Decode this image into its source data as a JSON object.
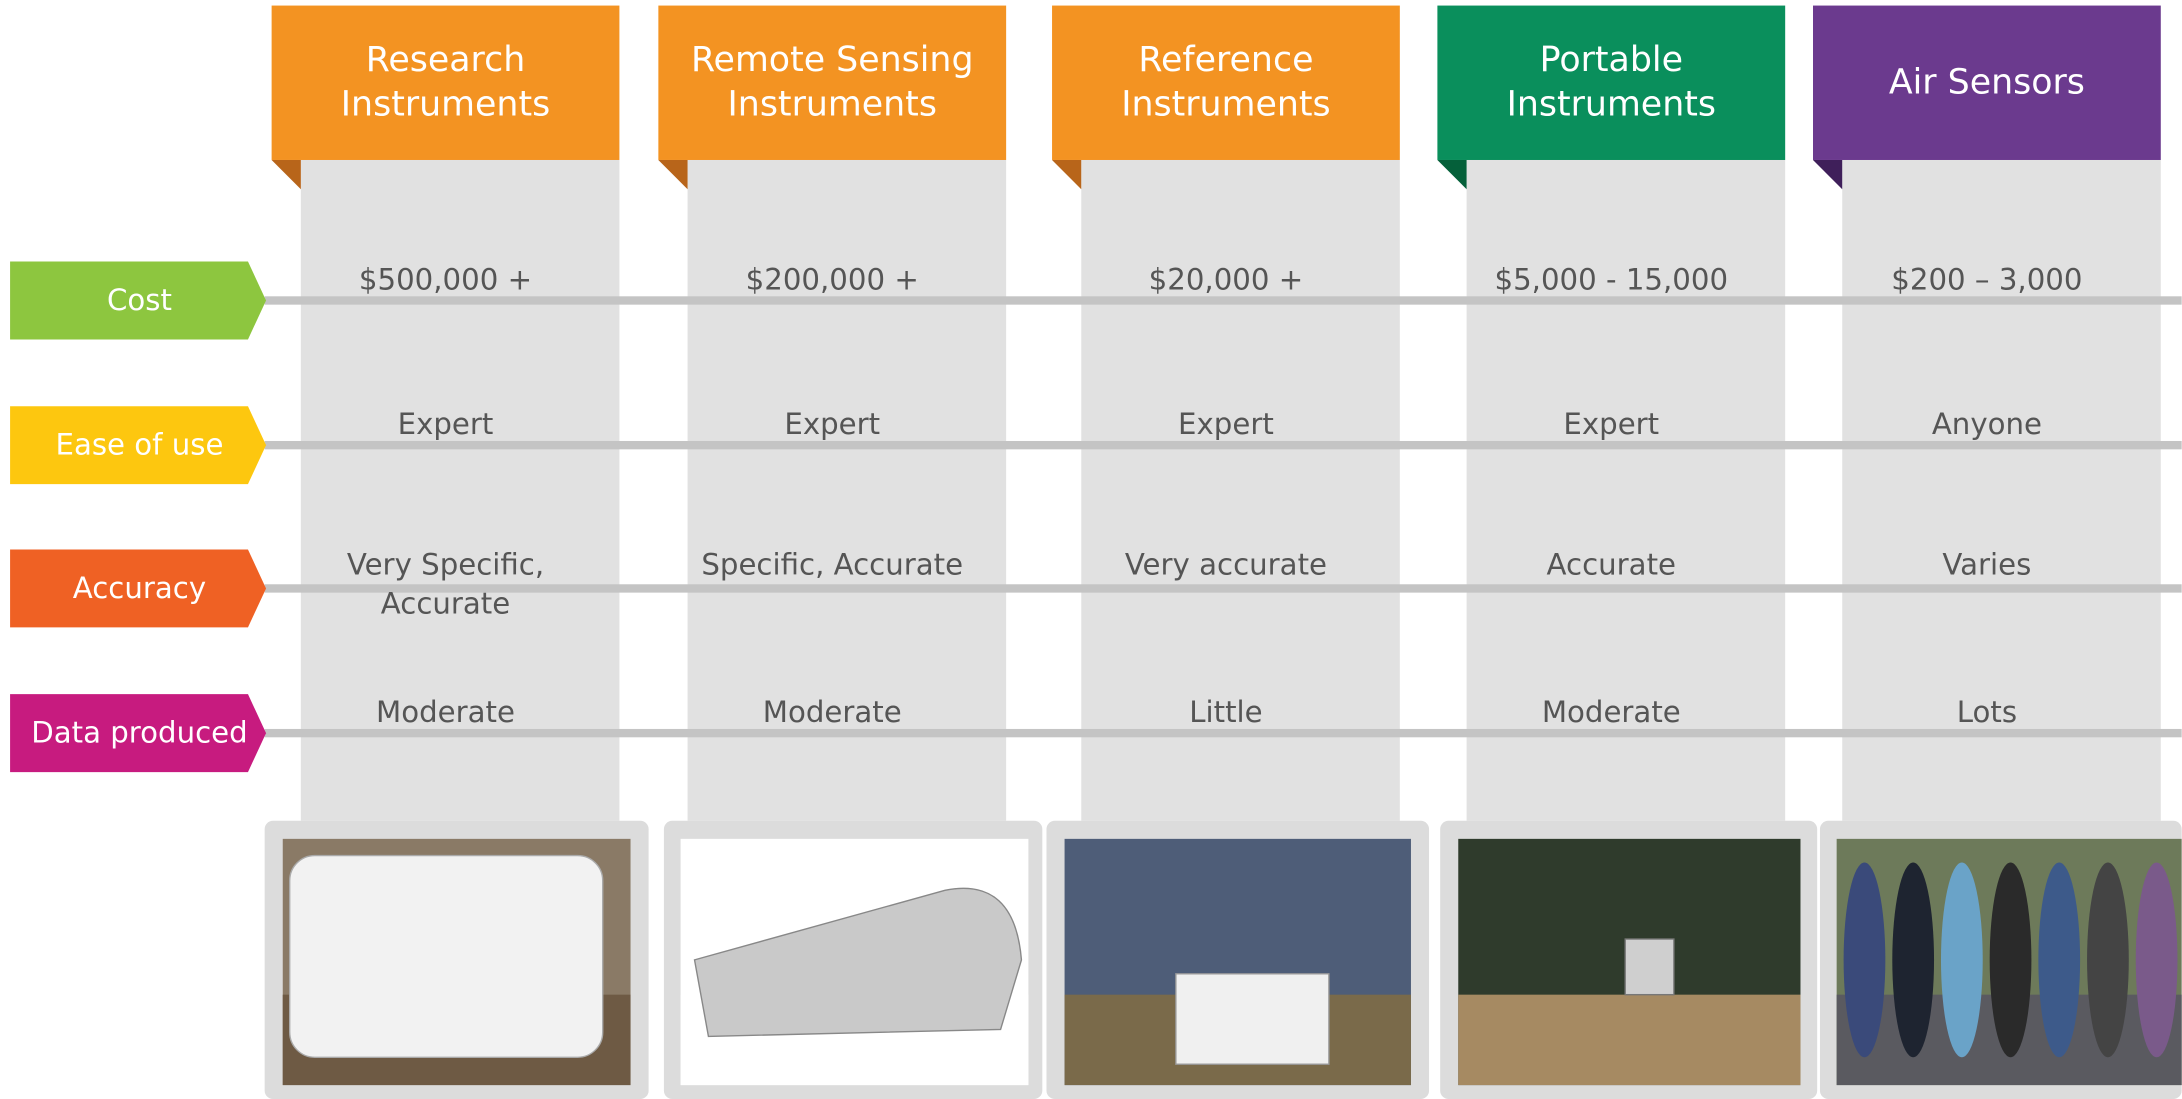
{
  "rows": [
    "Cost",
    "Ease of use",
    "Accuracy",
    "Data produced"
  ],
  "columns": [
    {
      "title": [
        "Research",
        "Instruments"
      ],
      "cells": [
        "$500,000 +",
        "Expert",
        "Very Specific, Accurate",
        "Moderate"
      ]
    },
    {
      "title": [
        "Remote Sensing",
        "Instruments"
      ],
      "cells": [
        "$200,000 +",
        "Expert",
        "Specific, Accurate",
        "Moderate"
      ]
    },
    {
      "title": [
        "Reference",
        "Instruments"
      ],
      "cells": [
        "$20,000 +",
        "Expert",
        "Very accurate",
        "Little"
      ]
    },
    {
      "title": [
        "Portable",
        "Instruments"
      ],
      "cells": [
        "$5,000 - 15,000",
        "Expert",
        "Accurate",
        "Moderate"
      ]
    },
    {
      "title": [
        "Air Sensors"
      ],
      "cells": [
        "$200 – 3,000",
        "Anyone",
        "Varies",
        "Lots"
      ]
    }
  ]
}
